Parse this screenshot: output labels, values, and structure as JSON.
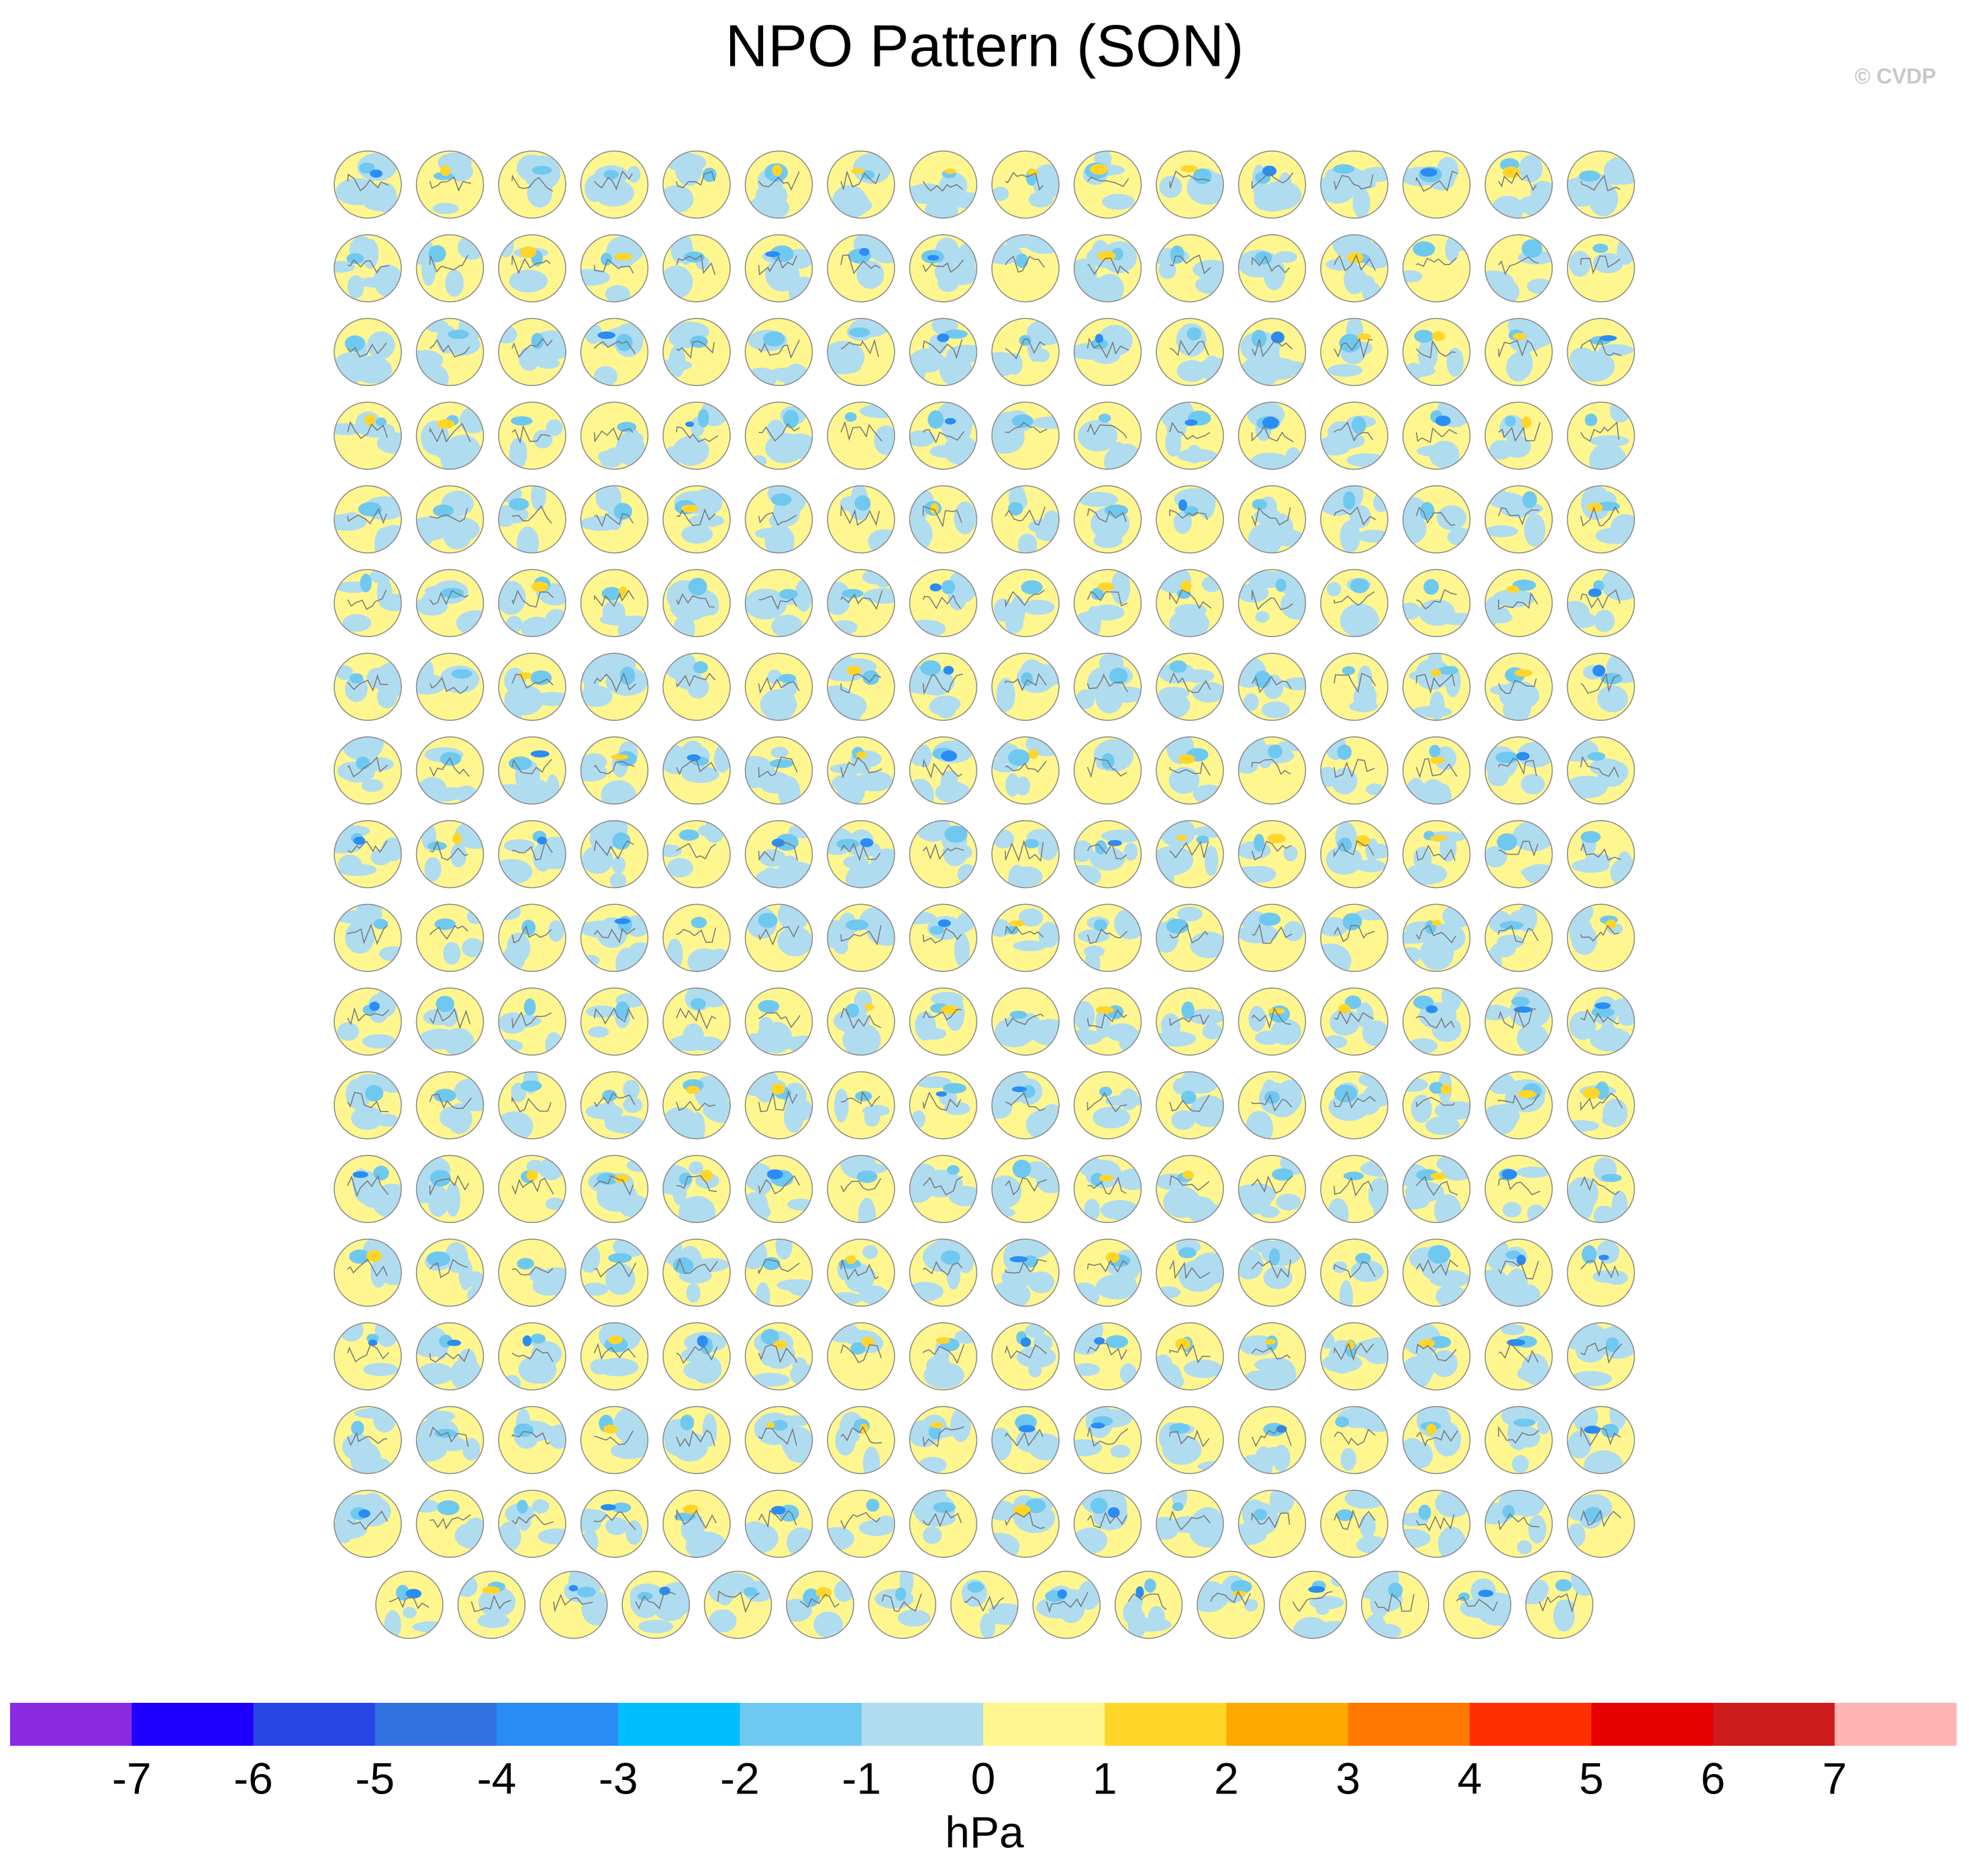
{
  "header": {
    "title": "NPO Pattern (SON)",
    "credit": "© CVDP"
  },
  "colorbar": {
    "ticks": [
      -7,
      -6,
      -5,
      -4,
      -3,
      -2,
      -1,
      0,
      1,
      2,
      3,
      4,
      5,
      6,
      7
    ],
    "colors": [
      "#8a2be2",
      "#1e00ff",
      "#2845e6",
      "#3271e0",
      "#2a8cf5",
      "#00bfff",
      "#6fc8f0",
      "#b0dcf0",
      "#fff68f",
      "#ffd52a",
      "#ffa800",
      "#ff7800",
      "#ff2f00",
      "#e60000",
      "#cd1a1a",
      "#ffb4b4"
    ],
    "label": "hPa"
  }
}
